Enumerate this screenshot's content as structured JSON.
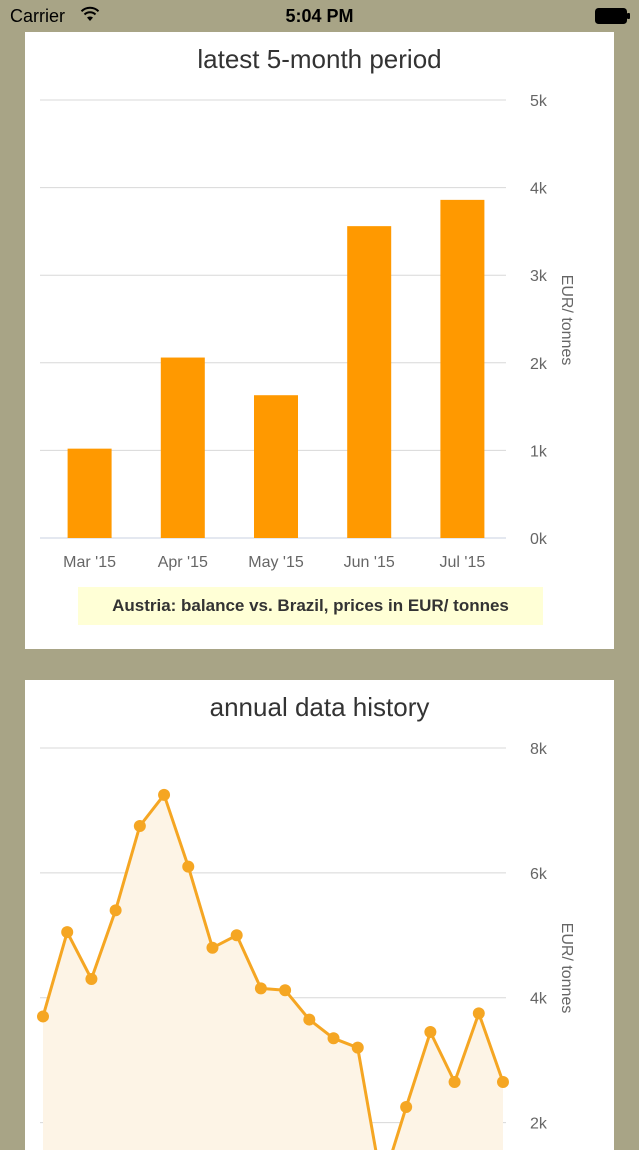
{
  "status_bar": {
    "carrier": "Carrier",
    "time": "5:04 PM"
  },
  "colors": {
    "bar": "#ff9900",
    "line": "#f5a623",
    "area": "#fdf4e6",
    "grid": "#d8d8d8",
    "background": "#a8a486"
  },
  "chart_data": [
    {
      "type": "bar",
      "title": "latest 5-month period",
      "categories": [
        "Mar '15",
        "Apr '15",
        "May '15",
        "Jun '15",
        "Jul '15"
      ],
      "values": [
        1020,
        2060,
        1630,
        3560,
        3860
      ],
      "ylabel": "EUR/ tonnes",
      "ylim": [
        0,
        5000
      ],
      "yticks": [
        {
          "value": 0,
          "label": "0k"
        },
        {
          "value": 1000,
          "label": "1k"
        },
        {
          "value": 2000,
          "label": "2k"
        },
        {
          "value": 3000,
          "label": "3k"
        },
        {
          "value": 4000,
          "label": "4k"
        },
        {
          "value": 5000,
          "label": "5k"
        }
      ],
      "grid": true,
      "caption": "Austria: balance vs. Brazil, prices in EUR/ tonnes"
    },
    {
      "type": "area",
      "title": "annual data history",
      "values": [
        3700,
        5050,
        4300,
        5400,
        6750,
        7250,
        6100,
        4800,
        5000,
        4150,
        4120,
        3650,
        3350,
        3200,
        1000,
        2250,
        3450,
        2650,
        3750,
        2650
      ],
      "ylabel": "EUR/ tonnes",
      "ylim": [
        1000,
        8000
      ],
      "yticks": [
        {
          "value": 2000,
          "label": "2k"
        },
        {
          "value": 4000,
          "label": "4k"
        },
        {
          "value": 6000,
          "label": "6k"
        },
        {
          "value": 8000,
          "label": "8k"
        }
      ],
      "grid": true
    }
  ]
}
